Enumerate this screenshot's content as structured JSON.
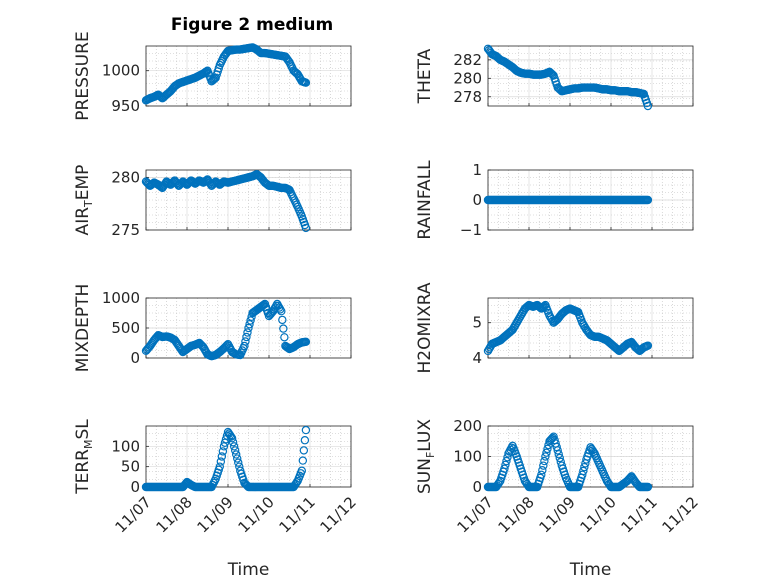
{
  "figure": {
    "title": "Figure 2 medium",
    "colors": {
      "marker": "#0072BD",
      "grid": "#bfbfbf",
      "axis": "#262626"
    }
  },
  "chart_data": [
    {
      "type": "scatter",
      "ylabel": "PRESSURE",
      "xlabel": "",
      "ylim": [
        950,
        1035
      ],
      "yticks": [
        950,
        1000
      ],
      "xlim": [
        0,
        5
      ],
      "xticks": [
        "",
        "",
        "",
        "",
        "",
        ""
      ],
      "x": [
        0,
        0.1,
        0.2,
        0.3,
        0.4,
        0.5,
        0.6,
        0.7,
        0.8,
        0.9,
        1.0,
        1.1,
        1.2,
        1.3,
        1.4,
        1.5,
        1.6,
        1.7,
        1.8,
        1.9,
        2.0,
        2.1,
        2.2,
        2.3,
        2.4,
        2.5,
        2.6,
        2.7,
        2.8,
        2.9,
        3.0,
        3.1,
        3.2,
        3.3,
        3.4,
        3.5,
        3.6,
        3.7,
        3.8,
        3.9
      ],
      "y": [
        958,
        961,
        963,
        966,
        961,
        966,
        971,
        978,
        982,
        984,
        986,
        988,
        990,
        993,
        996,
        1000,
        985,
        990,
        1008,
        1020,
        1028,
        1029,
        1030,
        1030,
        1031,
        1032,
        1033,
        1030,
        1025,
        1025,
        1024,
        1023,
        1022,
        1021,
        1020,
        1012,
        1000,
        995,
        985,
        983
      ]
    },
    {
      "type": "scatter",
      "ylabel": "THETA",
      "xlabel": "",
      "ylim": [
        277,
        283.5
      ],
      "yticks": [
        278,
        280,
        282
      ],
      "xlim": [
        0,
        5
      ],
      "xticks": [
        "",
        "",
        "",
        "",
        "",
        ""
      ],
      "x": [
        0,
        0.1,
        0.2,
        0.3,
        0.4,
        0.5,
        0.6,
        0.7,
        0.8,
        0.9,
        1.0,
        1.1,
        1.2,
        1.3,
        1.4,
        1.5,
        1.6,
        1.7,
        1.8,
        1.9,
        2.0,
        2.1,
        2.2,
        2.3,
        2.4,
        2.5,
        2.6,
        2.7,
        2.8,
        2.9,
        3.0,
        3.1,
        3.2,
        3.3,
        3.4,
        3.5,
        3.6,
        3.7,
        3.8,
        3.9
      ],
      "y": [
        283.2,
        282.6,
        282.4,
        282.0,
        281.8,
        281.5,
        281.2,
        280.8,
        280.6,
        280.5,
        280.5,
        280.4,
        280.4,
        280.4,
        280.5,
        280.7,
        280.3,
        279.0,
        278.6,
        278.7,
        278.8,
        278.9,
        278.9,
        279.0,
        279.0,
        279.0,
        279.0,
        278.9,
        278.8,
        278.8,
        278.7,
        278.7,
        278.6,
        278.6,
        278.6,
        278.5,
        278.5,
        278.4,
        278.3,
        277.0
      ]
    },
    {
      "type": "scatter",
      "ylabel": "AIR_TEMP",
      "xlabel": "",
      "ylim": [
        275,
        280.7
      ],
      "yticks": [
        275,
        280
      ],
      "xlim": [
        0,
        5
      ],
      "xticks": [
        "",
        "",
        "",
        "",
        "",
        ""
      ],
      "x": [
        0,
        0.1,
        0.2,
        0.3,
        0.4,
        0.5,
        0.6,
        0.7,
        0.8,
        0.9,
        1.0,
        1.1,
        1.2,
        1.3,
        1.4,
        1.5,
        1.6,
        1.7,
        1.8,
        1.9,
        2.0,
        2.1,
        2.2,
        2.3,
        2.4,
        2.5,
        2.6,
        2.7,
        2.8,
        2.9,
        3.0,
        3.1,
        3.2,
        3.3,
        3.4,
        3.5,
        3.6,
        3.7,
        3.8,
        3.9
      ],
      "y": [
        279.6,
        279.2,
        279.5,
        279.3,
        279.0,
        279.6,
        279.3,
        279.7,
        279.2,
        279.6,
        279.3,
        279.7,
        279.4,
        279.7,
        279.5,
        279.8,
        279.2,
        279.6,
        279.3,
        279.6,
        279.5,
        279.6,
        279.7,
        279.8,
        279.9,
        280.0,
        280.1,
        280.3,
        280.0,
        279.5,
        279.2,
        279.2,
        279.1,
        279.0,
        279.0,
        278.8,
        278.0,
        277.2,
        276.3,
        275.2
      ]
    },
    {
      "type": "scatter",
      "ylabel": "RAINFALL",
      "xlabel": "",
      "ylim": [
        -1,
        1
      ],
      "yticks": [
        -1,
        0,
        1
      ],
      "xlim": [
        0,
        5
      ],
      "xticks": [
        "",
        "",
        "",
        "",
        "",
        ""
      ],
      "x": [
        0,
        0.1,
        0.2,
        0.3,
        0.4,
        0.5,
        0.6,
        0.7,
        0.8,
        0.9,
        1.0,
        1.1,
        1.2,
        1.3,
        1.4,
        1.5,
        1.6,
        1.7,
        1.8,
        1.9,
        2.0,
        2.1,
        2.2,
        2.3,
        2.4,
        2.5,
        2.6,
        2.7,
        2.8,
        2.9,
        3.0,
        3.1,
        3.2,
        3.3,
        3.4,
        3.5,
        3.6,
        3.7,
        3.8,
        3.9
      ],
      "y": [
        0,
        0,
        0,
        0,
        0,
        0,
        0,
        0,
        0,
        0,
        0,
        0,
        0,
        0,
        0,
        0,
        0,
        0,
        0,
        0,
        0,
        0,
        0,
        0,
        0,
        0,
        0,
        0,
        0,
        0,
        0,
        0,
        0,
        0,
        0,
        0,
        0,
        0,
        0,
        0
      ]
    },
    {
      "type": "scatter",
      "ylabel": "MIXDEPTH",
      "xlabel": "",
      "ylim": [
        0,
        1000
      ],
      "yticks": [
        0,
        500,
        1000
      ],
      "xlim": [
        0,
        5
      ],
      "xticks": [
        "",
        "",
        "",
        "",
        "",
        ""
      ],
      "x": [
        0,
        0.1,
        0.2,
        0.3,
        0.4,
        0.5,
        0.6,
        0.7,
        0.8,
        0.9,
        1.0,
        1.1,
        1.2,
        1.3,
        1.4,
        1.5,
        1.6,
        1.7,
        1.8,
        1.9,
        2.0,
        2.1,
        2.2,
        2.3,
        2.4,
        2.5,
        2.6,
        2.7,
        2.8,
        2.9,
        3.0,
        3.1,
        3.2,
        3.3,
        3.4,
        3.5,
        3.6,
        3.7,
        3.8,
        3.9
      ],
      "y": [
        120,
        200,
        300,
        380,
        350,
        360,
        340,
        300,
        200,
        100,
        150,
        200,
        220,
        250,
        180,
        60,
        30,
        50,
        100,
        160,
        230,
        100,
        60,
        50,
        200,
        500,
        750,
        800,
        850,
        900,
        700,
        780,
        900,
        780,
        200,
        150,
        180,
        230,
        260,
        270
      ]
    },
    {
      "type": "scatter",
      "ylabel": "H2OMIXRA",
      "xlabel": "",
      "ylim": [
        4,
        5.7
      ],
      "yticks": [
        4,
        5
      ],
      "xlim": [
        0,
        5
      ],
      "xticks": [
        "",
        "",
        "",
        "",
        "",
        ""
      ],
      "x": [
        0,
        0.1,
        0.2,
        0.3,
        0.4,
        0.5,
        0.6,
        0.7,
        0.8,
        0.9,
        1.0,
        1.1,
        1.2,
        1.3,
        1.4,
        1.5,
        1.6,
        1.7,
        1.8,
        1.9,
        2.0,
        2.1,
        2.2,
        2.3,
        2.4,
        2.5,
        2.6,
        2.7,
        2.8,
        2.9,
        3.0,
        3.1,
        3.2,
        3.3,
        3.4,
        3.5,
        3.6,
        3.7,
        3.8,
        3.9
      ],
      "y": [
        4.2,
        4.4,
        4.45,
        4.5,
        4.6,
        4.7,
        4.8,
        5.0,
        5.2,
        5.4,
        5.5,
        5.45,
        5.5,
        5.4,
        5.5,
        5.2,
        5.0,
        5.1,
        5.25,
        5.35,
        5.4,
        5.35,
        5.3,
        5.0,
        4.8,
        4.65,
        4.6,
        4.6,
        4.55,
        4.5,
        4.4,
        4.3,
        4.2,
        4.3,
        4.4,
        4.45,
        4.3,
        4.2,
        4.3,
        4.35
      ]
    },
    {
      "type": "scatter",
      "ylabel": "TERR_MSL",
      "xlabel": "Time",
      "ylim": [
        0,
        150
      ],
      "yticks": [
        0,
        50,
        100
      ],
      "xlim": [
        0,
        5
      ],
      "xticks": [
        "11/07",
        "11/08",
        "11/09",
        "11/10",
        "11/11",
        "11/12"
      ],
      "x": [
        0,
        0.1,
        0.2,
        0.3,
        0.4,
        0.5,
        0.6,
        0.7,
        0.8,
        0.9,
        1.0,
        1.1,
        1.2,
        1.3,
        1.4,
        1.5,
        1.6,
        1.7,
        1.8,
        1.9,
        2.0,
        2.1,
        2.2,
        2.3,
        2.4,
        2.5,
        2.6,
        2.7,
        2.8,
        2.9,
        3.0,
        3.1,
        3.2,
        3.3,
        3.4,
        3.5,
        3.6,
        3.7,
        3.8,
        3.9
      ],
      "y": [
        0,
        0,
        0,
        0,
        0,
        0,
        0,
        0,
        0,
        0,
        12,
        5,
        0,
        0,
        0,
        0,
        0,
        20,
        50,
        100,
        135,
        120,
        80,
        40,
        10,
        0,
        0,
        0,
        0,
        0,
        0,
        0,
        0,
        0,
        0,
        0,
        0,
        15,
        40,
        140
      ]
    },
    {
      "type": "scatter",
      "ylabel": "SUN_FLUX",
      "xlabel": "Time",
      "ylim": [
        0,
        200
      ],
      "yticks": [
        0,
        100,
        200
      ],
      "xlim": [
        0,
        5
      ],
      "xticks": [
        "11/07",
        "11/08",
        "11/09",
        "11/10",
        "11/11",
        "11/12"
      ],
      "x": [
        0,
        0.1,
        0.2,
        0.3,
        0.4,
        0.5,
        0.6,
        0.7,
        0.8,
        0.9,
        1.0,
        1.1,
        1.2,
        1.3,
        1.4,
        1.5,
        1.6,
        1.7,
        1.8,
        1.9,
        2.0,
        2.1,
        2.2,
        2.3,
        2.4,
        2.5,
        2.6,
        2.7,
        2.8,
        2.9,
        3.0,
        3.1,
        3.2,
        3.3,
        3.4,
        3.5,
        3.6,
        3.7,
        3.8,
        3.9
      ],
      "y": [
        0,
        0,
        0,
        20,
        60,
        110,
        135,
        100,
        60,
        20,
        0,
        0,
        0,
        40,
        100,
        150,
        165,
        120,
        70,
        30,
        0,
        0,
        0,
        40,
        90,
        130,
        110,
        80,
        50,
        20,
        0,
        0,
        0,
        10,
        20,
        35,
        15,
        0,
        0,
        0
      ]
    }
  ]
}
